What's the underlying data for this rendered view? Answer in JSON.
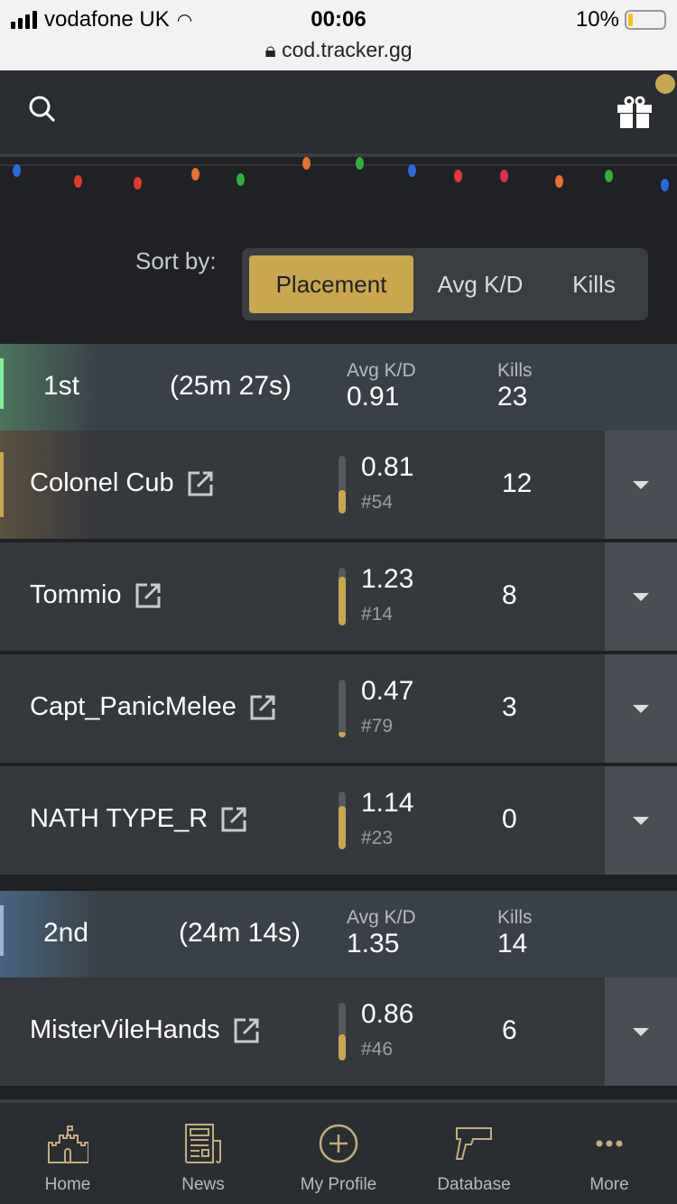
{
  "status_bar": {
    "carrier": "vodafone UK",
    "time": "00:06",
    "url": "cod.tracker.gg",
    "battery": "10%",
    "battery_level": 0.1
  },
  "colors": {
    "accent": "#c9a74e",
    "first_place": "#7ff29a",
    "second_place": "#a0b4d0"
  },
  "sort": {
    "label": "Sort by:",
    "options": [
      "Placement",
      "Avg K/D",
      "Kills"
    ],
    "selected": "Placement"
  },
  "teams": [
    {
      "place": "1st",
      "time": "(25m 27s)",
      "kd_label": "Avg K/D",
      "kd": "0.91",
      "kills_label": "Kills",
      "kills": "23",
      "players": [
        {
          "name": "Colonel Cub",
          "kd": "0.81",
          "rank": "#54",
          "kills": "12",
          "kd_fill": 0.4
        },
        {
          "name": "Tommio",
          "kd": "1.23",
          "rank": "#14",
          "kills": "8",
          "kd_fill": 0.85
        },
        {
          "name": "Capt_PanicMelee",
          "kd": "0.47",
          "rank": "#79",
          "kills": "3",
          "kd_fill": 0.1
        },
        {
          "name": "NATH TYPE_R",
          "kd": "1.14",
          "rank": "#23",
          "kills": "0",
          "kd_fill": 0.75
        }
      ]
    },
    {
      "place": "2nd",
      "time": "(24m 14s)",
      "kd_label": "Avg K/D",
      "kd": "1.35",
      "kills_label": "Kills",
      "kills": "14",
      "players": [
        {
          "name": "MisterVileHands",
          "kd": "0.86",
          "rank": "#46",
          "kills": "6",
          "kd_fill": 0.45
        }
      ]
    }
  ],
  "nav": [
    {
      "label": "Home",
      "icon": "castle-icon"
    },
    {
      "label": "News",
      "icon": "newspaper-icon"
    },
    {
      "label": "My Profile",
      "icon": "plus-circle-icon"
    },
    {
      "label": "Database",
      "icon": "pistol-icon"
    },
    {
      "label": "More",
      "icon": "more-icon"
    }
  ]
}
